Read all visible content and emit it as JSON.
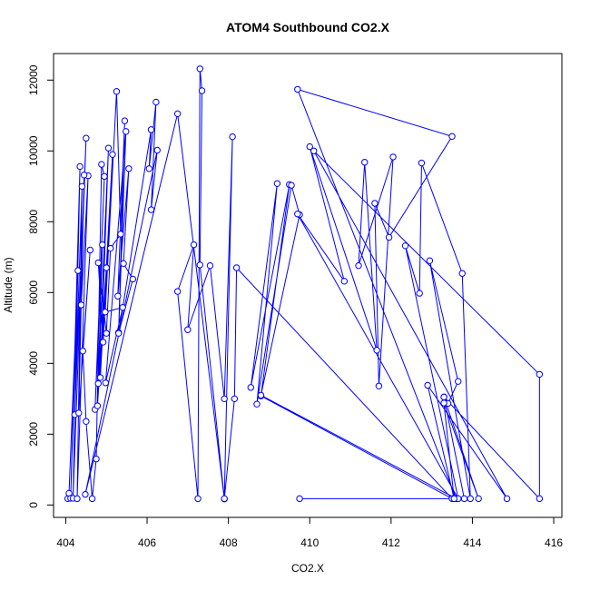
{
  "chart_data": {
    "type": "line",
    "title": "ATOM4 Southbound CO2.X",
    "xlabel": "CO2.X",
    "ylabel": "Altitude (m)",
    "xlim": [
      403.7,
      416.2
    ],
    "ylim": [
      -350,
      12750
    ],
    "xticks": [
      404,
      406,
      408,
      410,
      412,
      414,
      416
    ],
    "yticks": [
      0,
      2000,
      4000,
      6000,
      8000,
      10000,
      12000
    ],
    "color": "#0000ff",
    "marker": "open-circle",
    "grid": false,
    "series": [
      {
        "points": [
          [
            404.05,
            180
          ],
          [
            404.08,
            330
          ],
          [
            404.3,
            6620
          ],
          [
            404.12,
            190
          ],
          [
            404.35,
            9560
          ],
          [
            404.18,
            190
          ],
          [
            404.5,
            10360
          ],
          [
            404.22,
            2550
          ],
          [
            404.4,
            9000
          ],
          [
            404.28,
            180
          ],
          [
            404.55,
            9300
          ],
          [
            404.38,
            5650
          ],
          [
            404.45,
            9320
          ],
          [
            404.32,
            2600
          ],
          [
            404.6,
            7200
          ],
          [
            404.42,
            4350
          ],
          [
            404.5,
            2360
          ],
          [
            404.65,
            180
          ],
          [
            404.75,
            1300
          ],
          [
            404.88,
            9620
          ],
          [
            404.95,
            9280
          ],
          [
            404.72,
            2700
          ],
          [
            404.9,
            7350
          ],
          [
            404.78,
            2800
          ],
          [
            405.0,
            6700
          ],
          [
            404.8,
            3430
          ],
          [
            405.05,
            10080
          ],
          [
            404.85,
            3600
          ],
          [
            405.15,
            9900
          ],
          [
            404.92,
            4600
          ],
          [
            404.8,
            6840
          ],
          [
            405.0,
            4850
          ],
          [
            405.1,
            7250
          ],
          [
            405.35,
            7650
          ],
          [
            405.25,
            11680
          ],
          [
            404.97,
            5450
          ],
          [
            405.4,
            5580
          ],
          [
            404.98,
            3450
          ],
          [
            405.48,
            10550
          ],
          [
            405.3,
            4870
          ],
          [
            405.45,
            10850
          ],
          [
            405.28,
            5900
          ],
          [
            405.55,
            9500
          ],
          [
            405.42,
            6820
          ],
          [
            405.65,
            6380
          ],
          [
            405.3,
            4850
          ],
          [
            406.1,
            10600
          ],
          [
            406.05,
            9500
          ],
          [
            406.22,
            11380
          ],
          [
            406.1,
            8340
          ],
          [
            406.25,
            10020
          ],
          [
            404.48,
            300
          ],
          [
            406.75,
            11050
          ],
          [
            407.9,
            170
          ],
          [
            407.3,
            6780
          ],
          [
            407.35,
            11700
          ],
          [
            407.3,
            12320
          ],
          [
            407.25,
            180
          ],
          [
            406.75,
            6030
          ],
          [
            407.15,
            7350
          ],
          [
            407.0,
            4950
          ],
          [
            407.55,
            6760
          ],
          [
            407.9,
            3000
          ],
          [
            408.1,
            10400
          ],
          [
            407.9,
            180
          ],
          [
            408.15,
            3000
          ],
          [
            408.2,
            6700
          ],
          [
            413.5,
            180
          ],
          [
            408.8,
            3080
          ],
          [
            409.5,
            9050
          ],
          [
            408.55,
            3320
          ],
          [
            409.2,
            9080
          ],
          [
            408.7,
            2850
          ],
          [
            409.55,
            9030
          ],
          [
            409.75,
            8200
          ],
          [
            408.8,
            3100
          ],
          [
            413.6,
            180
          ],
          [
            409.7,
            11740
          ],
          [
            413.5,
            10410
          ],
          [
            411.95,
            7560
          ],
          [
            411.6,
            8520
          ],
          [
            411.7,
            3360
          ],
          [
            412.05,
            9830
          ],
          [
            411.2,
            6760
          ],
          [
            411.35,
            9680
          ],
          [
            411.65,
            4370
          ],
          [
            410.0,
            10120
          ],
          [
            410.85,
            6320
          ],
          [
            409.7,
            8220
          ],
          [
            413.65,
            180
          ],
          [
            412.35,
            7320
          ],
          [
            412.7,
            5980
          ],
          [
            412.75,
            9660
          ],
          [
            413.75,
            6540
          ],
          [
            413.95,
            180
          ],
          [
            412.95,
            6900
          ],
          [
            413.65,
            3490
          ],
          [
            413.4,
            2870
          ],
          [
            413.3,
            3050
          ],
          [
            415.65,
            180
          ],
          [
            415.65,
            3690
          ],
          [
            410.1,
            10000
          ],
          [
            414.85,
            180
          ],
          [
            412.9,
            3380
          ],
          [
            413.55,
            180
          ],
          [
            413.3,
            2880
          ],
          [
            414.15,
            180
          ],
          [
            413.3,
            3050
          ],
          [
            413.8,
            180
          ],
          [
            409.75,
            180
          ]
        ]
      }
    ]
  }
}
